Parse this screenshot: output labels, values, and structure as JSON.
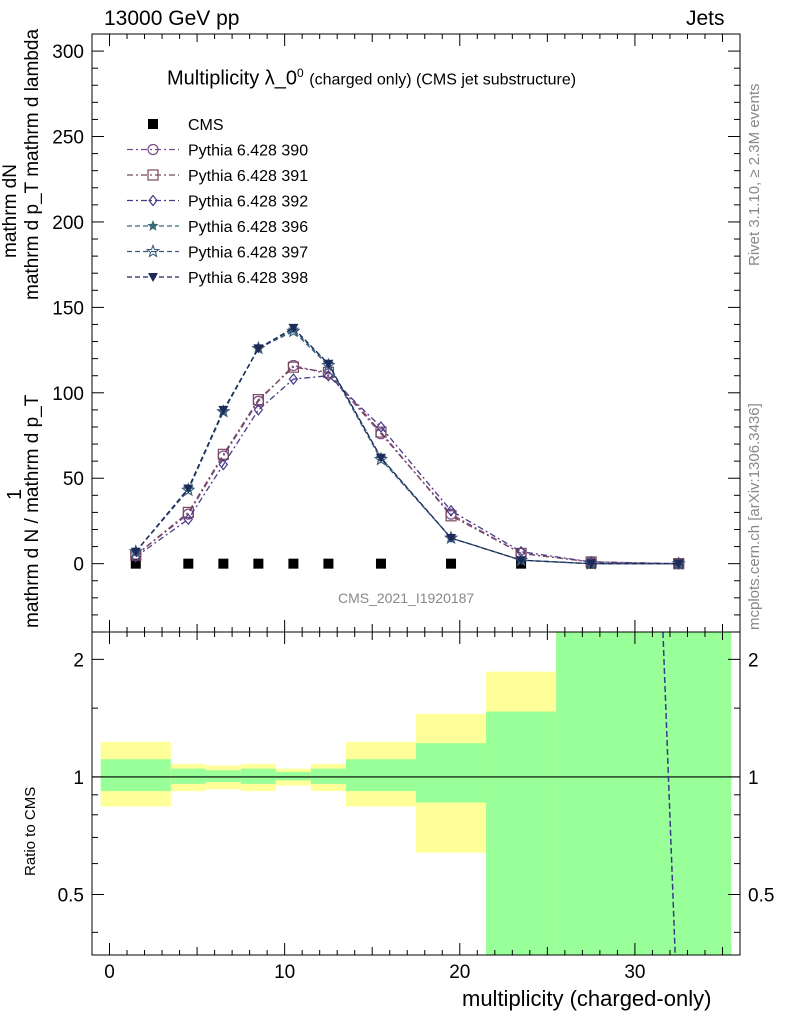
{
  "header": {
    "left": "13000 GeV pp",
    "right": "Jets"
  },
  "title": {
    "main": "Multiplicity λ_0",
    "sup": "0",
    "suffix": "(charged only) (CMS jet substructure)"
  },
  "ylabel_top": {
    "num_a": "1",
    "num_b": "mathrm dN",
    "den": "mathrm d N / mathrm d p",
    "den_sub": "T",
    "den_tail": "mathrm d p",
    "den_tail_sub": "T",
    "den_end": "mathrm d lambda",
    "full_top": "mathrm d p_T mathrm d lambda",
    "full_bottom": "mathrm d N / mathrm d p_T"
  },
  "ylabel_bottom": "Ratio to CMS",
  "xlabel": "multiplicity (charged-only)",
  "watermark": "CMS_2021_I1920187",
  "side_text": {
    "rivet": "Rivet 3.1.10, ≥ 2.3M events",
    "mcplots": "mcplots.cern.ch [arXiv:1306.3436]"
  },
  "chart_data": [
    {
      "type": "line",
      "xlim": [
        -1,
        36
      ],
      "ylim": [
        -40,
        310
      ],
      "yticks": [
        0,
        50,
        100,
        150,
        200,
        250,
        300
      ],
      "xticks": [
        0,
        10,
        20,
        30
      ],
      "legend_position": "top-left",
      "x": [
        1.5,
        4.5,
        6.5,
        8.5,
        10.5,
        12.5,
        15.5,
        19.5,
        23.5,
        27.5,
        32.5
      ],
      "series": [
        {
          "name": "CMS",
          "color": "#000000",
          "marker": "square",
          "values": [
            0,
            0,
            0,
            0,
            0,
            0,
            0,
            0,
            0,
            0,
            0
          ]
        },
        {
          "name": "Pythia 6.428 390",
          "color": "#7b4a8a",
          "marker": "circle-open",
          "dash": "dashdot",
          "values": [
            5,
            29,
            63,
            95,
            116,
            111,
            76,
            29,
            6,
            1,
            0
          ]
        },
        {
          "name": "Pythia 6.428 391",
          "color": "#7a4a5e",
          "marker": "square-open",
          "dash": "dashdot",
          "values": [
            5,
            30,
            64,
            96,
            115,
            112,
            77,
            28,
            6,
            1,
            0
          ]
        },
        {
          "name": "Pythia 6.428 392",
          "color": "#4a3a8a",
          "marker": "diamond-open",
          "dash": "dashdot",
          "values": [
            4,
            26,
            58,
            90,
            108,
            110,
            80,
            31,
            7,
            1,
            0
          ]
        },
        {
          "name": "Pythia 6.428 396",
          "color": "#3a6a7a",
          "marker": "star-filled",
          "dash": "dashed",
          "values": [
            7,
            44,
            89,
            126,
            137,
            117,
            62,
            15,
            2,
            0,
            0
          ]
        },
        {
          "name": "Pythia 6.428 397",
          "color": "#3a5a7a",
          "marker": "star-open",
          "dash": "dashed",
          "values": [
            7,
            43,
            89,
            126,
            136,
            116,
            61,
            15,
            2,
            0,
            0
          ]
        },
        {
          "name": "Pythia 6.428 398",
          "color": "#1e2a5a",
          "marker": "triangle-down-filled",
          "dash": "dashed",
          "values": [
            7,
            44,
            90,
            126,
            138,
            117,
            62,
            15,
            2,
            0,
            0
          ]
        }
      ]
    },
    {
      "type": "area",
      "xlim": [
        -1,
        36
      ],
      "ylim": [
        0.35,
        2.35
      ],
      "yscale": "log",
      "yticks": [
        0.5,
        1,
        2
      ],
      "xticks": [
        0,
        10,
        20,
        30
      ],
      "bins": [
        [
          -0.5,
          3.5
        ],
        [
          3.5,
          5.5
        ],
        [
          5.5,
          7.5
        ],
        [
          7.5,
          9.5
        ],
        [
          9.5,
          11.5
        ],
        [
          11.5,
          13.5
        ],
        [
          13.5,
          17.5
        ],
        [
          17.5,
          21.5
        ],
        [
          21.5,
          25.5
        ],
        [
          25.5,
          35.5
        ]
      ],
      "band_inner": [
        [
          0.92,
          1.11
        ],
        [
          0.96,
          1.05
        ],
        [
          0.97,
          1.04
        ],
        [
          0.96,
          1.05
        ],
        [
          0.98,
          1.03
        ],
        [
          0.96,
          1.05
        ],
        [
          0.92,
          1.11
        ],
        [
          0.86,
          1.22
        ],
        [
          0.35,
          1.47
        ],
        [
          0.35,
          2.35
        ]
      ],
      "band_outer": [
        [
          0.84,
          1.23
        ],
        [
          0.92,
          1.08
        ],
        [
          0.93,
          1.07
        ],
        [
          0.92,
          1.08
        ],
        [
          0.95,
          1.05
        ],
        [
          0.92,
          1.08
        ],
        [
          0.84,
          1.23
        ],
        [
          0.64,
          1.45
        ],
        [
          0.35,
          1.86
        ],
        [
          0.35,
          2.35
        ]
      ],
      "band_colors": {
        "inner": "#99ff99",
        "outer": "#ffff99"
      },
      "reference_line": 1,
      "dashed_line": {
        "x": [
          31.6,
          32.3
        ],
        "y": [
          2.35,
          0.35
        ],
        "color": "#3a3a8a"
      }
    }
  ]
}
